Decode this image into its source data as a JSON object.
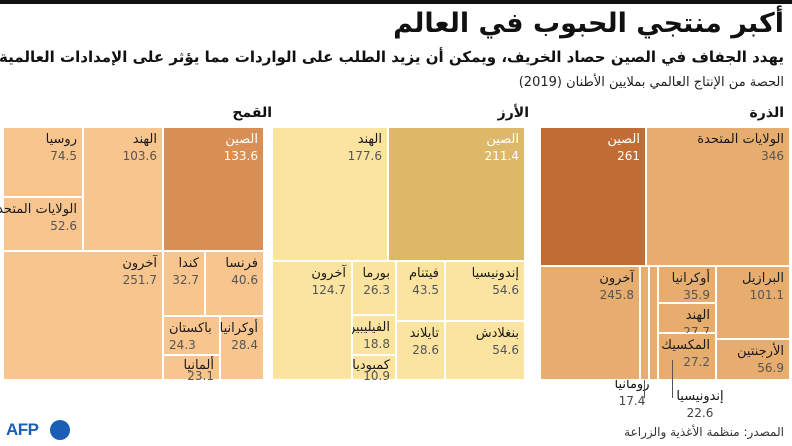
{
  "title": "أكبر منتجي الحبوب في العالم",
  "subtitle": "يهدد الجفاف في الصين حصاد الخريف، ويمكن أن يزيد الطلب على الواردات مما يؤثر على الإمدادات العالمية",
  "note": "الحصة من الإنتاج العالمي بملايين الأطنان (2019)",
  "source": "المصدر: منظمة الأغذية والزراعة",
  "logo_text": "AFP",
  "colors": {
    "wheat_light": "#f8c58e",
    "wheat_dark": "#d98e54",
    "rice_light": "#fbe3a0",
    "rice_dark": "#deb869",
    "corn_light": "#e6ad6e",
    "corn_dark": "#c26c35",
    "logo": "#1a5fb4"
  },
  "chart_data": [
    {
      "type": "treemap",
      "title": "القمح",
      "unit": "ملايين الأطنان",
      "items": [
        {
          "name": "الصين",
          "value": 133.6
        },
        {
          "name": "الهند",
          "value": 103.6
        },
        {
          "name": "روسيا",
          "value": 74.5
        },
        {
          "name": "الولايات المتحدة",
          "value": 52.6
        },
        {
          "name": "فرنسا",
          "value": 40.6
        },
        {
          "name": "كندا",
          "value": 32.7
        },
        {
          "name": "أوكرانيا",
          "value": 28.4
        },
        {
          "name": "باكستان",
          "value": 24.3
        },
        {
          "name": "ألمانيا",
          "value": 23.1
        },
        {
          "name": "آخرون",
          "value": 251.7
        }
      ]
    },
    {
      "type": "treemap",
      "title": "الأرز",
      "unit": "ملايين الأطنان",
      "items": [
        {
          "name": "الصين",
          "value": 211.4
        },
        {
          "name": "الهند",
          "value": 177.6
        },
        {
          "name": "إندونيسيا",
          "value": 54.6
        },
        {
          "name": "بنغلادش",
          "value": 54.6
        },
        {
          "name": "فيتنام",
          "value": 43.5
        },
        {
          "name": "تايلاند",
          "value": 28.6
        },
        {
          "name": "بورما",
          "value": 26.3
        },
        {
          "name": "الفيليبين",
          "value": 18.8
        },
        {
          "name": "كمبوديا",
          "value": 10.9
        },
        {
          "name": "آخرون",
          "value": 124.7
        }
      ]
    },
    {
      "type": "treemap",
      "title": "الذرة",
      "unit": "ملايين الأطنان",
      "items": [
        {
          "name": "الولايات المتحدة",
          "value": 346
        },
        {
          "name": "الصين",
          "value": 261
        },
        {
          "name": "البرازيل",
          "value": 101.1
        },
        {
          "name": "الأرجنتين",
          "value": 56.9
        },
        {
          "name": "أوكرانيا",
          "value": 35.9
        },
        {
          "name": "الهند",
          "value": 27.7
        },
        {
          "name": "المكسيك",
          "value": 27.2
        },
        {
          "name": "إندونيسيا",
          "value": 22.6
        },
        {
          "name": "رومانيا",
          "value": 17.4
        },
        {
          "name": "آخرون",
          "value": 245.8
        }
      ]
    }
  ]
}
